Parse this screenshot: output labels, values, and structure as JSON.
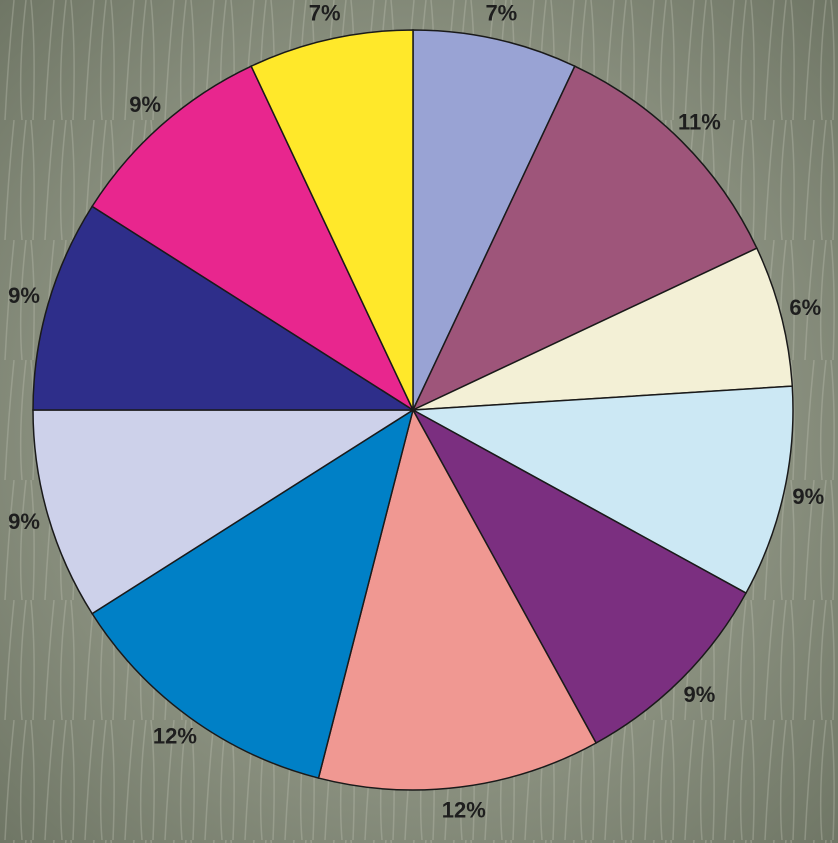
{
  "chart_data": {
    "type": "pie",
    "values": [
      7,
      11,
      6,
      9,
      9,
      12,
      12,
      9,
      9,
      9,
      7
    ],
    "value_labels": [
      "7%",
      "11%",
      "6%",
      "9%",
      "9%",
      "12%",
      "12%",
      "9%",
      "9%",
      "9%",
      "7%"
    ],
    "colors": [
      "#99a3d4",
      "#9e557a",
      "#f3f0d6",
      "#cce8f4",
      "#7b2f80",
      "#f09892",
      "#0080c6",
      "#cdd1ea",
      "#2e2e8a",
      "#e8268e",
      "#ffe82a"
    ]
  }
}
